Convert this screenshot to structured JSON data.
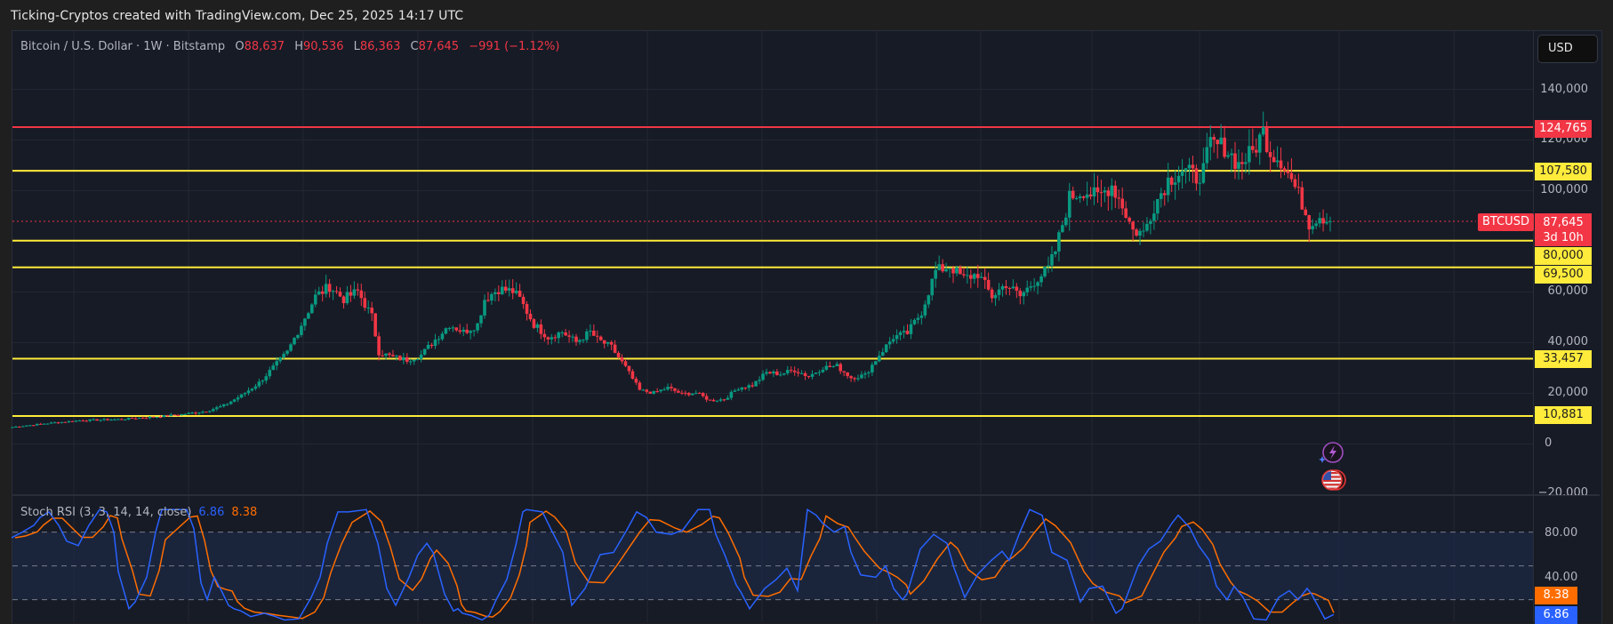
{
  "caption": "Ticking-Cryptos created with TradingView.com, Dec 25, 2025 14:17 UTC",
  "header": {
    "symbol_desc": "Bitcoin / U.S. Dollar · 1W · Bitstamp",
    "open_label": "O",
    "open": "88,637",
    "high_label": "H",
    "high": "90,536",
    "low_label": "L",
    "low": "86,363",
    "close_label": "C",
    "close": "87,645",
    "change": "−991 (−1.12%)"
  },
  "currency_button": "USD",
  "price_axis": {
    "labels": [
      "140,000",
      "120,000",
      "100,000",
      "60,000",
      "40,000",
      "20,000",
      "0",
      "−20,000"
    ],
    "values": [
      140000,
      120000,
      100000,
      60000,
      40000,
      20000,
      0,
      -20000
    ]
  },
  "horizontal_levels": [
    {
      "value": 124765,
      "label": "124,765",
      "color": "#f23645"
    },
    {
      "value": 107580,
      "label": "107,580",
      "color": "#ffeb3b"
    },
    {
      "value": 80000,
      "label": "80,000",
      "color": "#ffeb3b"
    },
    {
      "value": 69500,
      "label": "69,500",
      "color": "#ffeb3b"
    },
    {
      "value": 33457,
      "label": "33,457",
      "color": "#ffeb3b"
    },
    {
      "value": 10881,
      "label": "10,881",
      "color": "#ffeb3b"
    }
  ],
  "current_price": {
    "symbol": "BTCUSD",
    "price": "87,645",
    "countdown": "3d 10h",
    "value": 87645
  },
  "stoch_rsi": {
    "title": "Stoch RSI (3, 3, 14, 14, close)",
    "k_value": "6.86",
    "d_value": "8.38",
    "axis_labels": [
      "80.00",
      "40.00"
    ],
    "k_color": "#2962ff",
    "d_color": "#ff6d00"
  },
  "colors": {
    "up": "#089981",
    "down": "#f23645",
    "background": "#171b26",
    "grid": "#232733"
  },
  "icons": [
    "lightning-event-icon",
    "us-flag-event-icon"
  ],
  "chart_data": [
    {
      "type": "candlestick",
      "title": "Bitcoin / U.S. Dollar · 1W · Bitstamp",
      "ylabel": "USD",
      "ylim": [
        -20000,
        150000
      ],
      "legend": [
        "O 88,637",
        "H 90,536",
        "L 86,363",
        "C 87,645",
        "−991 (−1.12%)"
      ],
      "annotations": [
        "124,765",
        "107,580",
        "80,000",
        "69,500",
        "33,457",
        "10,881",
        "BTCUSD 87,645 3d 10h"
      ],
      "close_anchors": [
        [
          0,
          6500
        ],
        [
          10,
          8000
        ],
        [
          20,
          9200
        ],
        [
          30,
          9500
        ],
        [
          40,
          10500
        ],
        [
          48,
          11500
        ],
        [
          55,
          12800
        ],
        [
          60,
          15000
        ],
        [
          65,
          19000
        ],
        [
          70,
          24000
        ],
        [
          74,
          30000
        ],
        [
          78,
          36000
        ],
        [
          82,
          47000
        ],
        [
          86,
          58000
        ],
        [
          90,
          62000
        ],
        [
          94,
          57000
        ],
        [
          98,
          60000
        ],
        [
          102,
          50000
        ],
        [
          104,
          36000
        ],
        [
          108,
          34000
        ],
        [
          112,
          33000
        ],
        [
          116,
          35000
        ],
        [
          120,
          41000
        ],
        [
          124,
          47000
        ],
        [
          128,
          44000
        ],
        [
          132,
          47000
        ],
        [
          134,
          57000
        ],
        [
          138,
          61000
        ],
        [
          142,
          60000
        ],
        [
          144,
          57000
        ],
        [
          148,
          47000
        ],
        [
          152,
          42000
        ],
        [
          156,
          44000
        ],
        [
          160,
          40000
        ],
        [
          164,
          44000
        ],
        [
          166,
          41000
        ],
        [
          170,
          38000
        ],
        [
          174,
          30000
        ],
        [
          178,
          21000
        ],
        [
          182,
          20000
        ],
        [
          186,
          22000
        ],
        [
          190,
          19500
        ],
        [
          194,
          20000
        ],
        [
          198,
          17000
        ],
        [
          202,
          17500
        ],
        [
          206,
          22000
        ],
        [
          210,
          23000
        ],
        [
          214,
          28000
        ],
        [
          218,
          27500
        ],
        [
          222,
          29000
        ],
        [
          226,
          26500
        ],
        [
          230,
          30000
        ],
        [
          234,
          30500
        ],
        [
          238,
          26000
        ],
        [
          242,
          27000
        ],
        [
          246,
          35000
        ],
        [
          250,
          42000
        ],
        [
          254,
          43500
        ],
        [
          258,
          52000
        ],
        [
          262,
          68000
        ],
        [
          266,
          70000
        ],
        [
          270,
          65000
        ],
        [
          274,
          67000
        ],
        [
          278,
          58000
        ],
        [
          282,
          63000
        ],
        [
          286,
          58000
        ],
        [
          290,
          64000
        ],
        [
          294,
          69000
        ],
        [
          296,
          76000
        ],
        [
          300,
          97000
        ],
        [
          304,
          100000
        ],
        [
          308,
          97000
        ],
        [
          312,
          102000
        ],
        [
          315,
          94000
        ],
        [
          318,
          84000
        ],
        [
          321,
          83000
        ],
        [
          324,
          94000
        ],
        [
          328,
          104000
        ],
        [
          332,
          108000
        ],
        [
          336,
          105000
        ],
        [
          338,
          108000
        ],
        [
          340,
          118000
        ],
        [
          344,
          117000
        ],
        [
          348,
          110000
        ],
        [
          352,
          115000
        ],
        [
          355,
          123000
        ],
        [
          357,
          115000
        ],
        [
          360,
          112000
        ],
        [
          363,
          104000
        ],
        [
          366,
          95000
        ],
        [
          368,
          87000
        ],
        [
          371,
          90000
        ],
        [
          374,
          87645
        ]
      ]
    },
    {
      "type": "line",
      "title": "Stoch RSI (3, 3, 14, 14, close)",
      "ylim": [
        0,
        100
      ],
      "series": [
        {
          "name": "K",
          "last": 6.86
        },
        {
          "name": "D",
          "last": 8.38
        }
      ],
      "k_anchors": [
        [
          13,
          75
        ],
        [
          25,
          80
        ],
        [
          38,
          86
        ],
        [
          45,
          93
        ],
        [
          55,
          98
        ],
        [
          66,
          86
        ],
        [
          75,
          72
        ],
        [
          88,
          68
        ],
        [
          100,
          86
        ],
        [
          112,
          100
        ],
        [
          120,
          98
        ],
        [
          128,
          80
        ],
        [
          133,
          45
        ],
        [
          145,
          12
        ],
        [
          152,
          18
        ],
        [
          165,
          40
        ],
        [
          175,
          80
        ],
        [
          182,
          100
        ],
        [
          210,
          100
        ],
        [
          218,
          83
        ],
        [
          226,
          35
        ],
        [
          233,
          20
        ],
        [
          241,
          40
        ],
        [
          249,
          28
        ],
        [
          257,
          15
        ],
        [
          263,
          12
        ],
        [
          271,
          10
        ],
        [
          282,
          5
        ],
        [
          297,
          8
        ],
        [
          310,
          5
        ],
        [
          320,
          2
        ],
        [
          336,
          3
        ],
        [
          350,
          22
        ],
        [
          360,
          40
        ],
        [
          368,
          70
        ],
        [
          380,
          98
        ],
        [
          392,
          98
        ],
        [
          412,
          100
        ],
        [
          425,
          70
        ],
        [
          435,
          30
        ],
        [
          445,
          15
        ],
        [
          460,
          40
        ],
        [
          470,
          60
        ],
        [
          480,
          70
        ],
        [
          487,
          62
        ],
        [
          500,
          25
        ],
        [
          510,
          10
        ],
        [
          515,
          12
        ],
        [
          520,
          8
        ],
        [
          530,
          6
        ],
        [
          542,
          2
        ],
        [
          550,
          6
        ],
        [
          558,
          20
        ],
        [
          570,
          38
        ],
        [
          580,
          68
        ],
        [
          588,
          98
        ],
        [
          592,
          100
        ],
        [
          610,
          98
        ],
        [
          620,
          82
        ],
        [
          633,
          62
        ],
        [
          643,
          15
        ],
        [
          658,
          30
        ],
        [
          675,
          60
        ],
        [
          690,
          62
        ],
        [
          705,
          82
        ],
        [
          716,
          98
        ],
        [
          727,
          93
        ],
        [
          738,
          80
        ],
        [
          755,
          78
        ],
        [
          768,
          82
        ],
        [
          785,
          100
        ],
        [
          798,
          100
        ],
        [
          805,
          78
        ],
        [
          815,
          60
        ],
        [
          828,
          33
        ],
        [
          833,
          27
        ],
        [
          843,
          12
        ],
        [
          860,
          30
        ],
        [
          873,
          38
        ],
        [
          885,
          48
        ],
        [
          897,
          28
        ],
        [
          908,
          100
        ],
        [
          918,
          95
        ],
        [
          925,
          88
        ],
        [
          938,
          80
        ],
        [
          950,
          85
        ],
        [
          957,
          62
        ],
        [
          968,
          42
        ],
        [
          985,
          40
        ],
        [
          996,
          50
        ],
        [
          1005,
          30
        ],
        [
          1015,
          20
        ],
        [
          1020,
          25
        ],
        [
          1035,
          65
        ],
        [
          1050,
          78
        ],
        [
          1065,
          70
        ],
        [
          1073,
          48
        ],
        [
          1085,
          22
        ],
        [
          1100,
          43
        ],
        [
          1115,
          55
        ],
        [
          1127,
          63
        ],
        [
          1135,
          55
        ],
        [
          1147,
          80
        ],
        [
          1158,
          100
        ],
        [
          1172,
          95
        ],
        [
          1183,
          62
        ],
        [
          1200,
          55
        ],
        [
          1215,
          18
        ],
        [
          1225,
          30
        ],
        [
          1240,
          32
        ],
        [
          1255,
          8
        ],
        [
          1262,
          12
        ],
        [
          1280,
          50
        ],
        [
          1292,
          65
        ],
        [
          1305,
          72
        ],
        [
          1318,
          88
        ],
        [
          1325,
          95
        ],
        [
          1338,
          84
        ],
        [
          1348,
          68
        ],
        [
          1360,
          55
        ],
        [
          1368,
          32
        ],
        [
          1380,
          20
        ],
        [
          1388,
          32
        ],
        [
          1398,
          22
        ],
        [
          1410,
          3
        ],
        [
          1424,
          2
        ],
        [
          1438,
          22
        ],
        [
          1450,
          28
        ],
        [
          1460,
          20
        ],
        [
          1470,
          30
        ],
        [
          1475,
          25
        ],
        [
          1490,
          3
        ],
        [
          1500,
          6.86
        ]
      ]
    }
  ]
}
